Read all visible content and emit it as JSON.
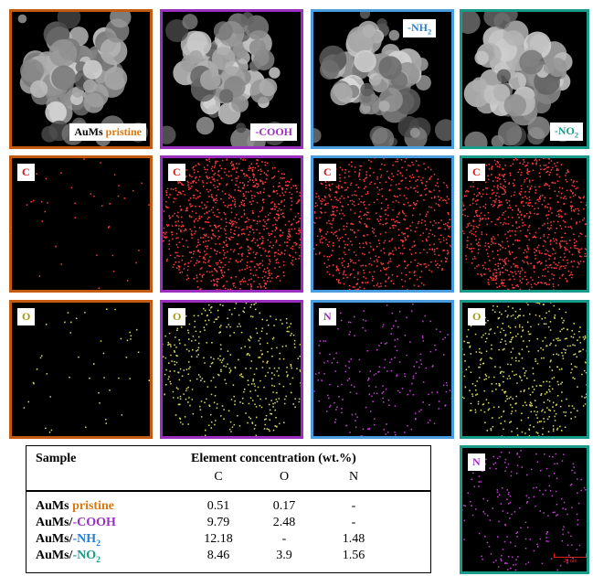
{
  "sem_panels": [
    {
      "prefix": "AuMs",
      "text": "pristine"
    },
    {
      "text": "-COOH"
    },
    {
      "text": "-NH",
      "sub": "2"
    },
    {
      "text": "-NO",
      "sub": "2"
    }
  ],
  "map_rows": [
    [
      "C",
      "C",
      "C",
      "C"
    ],
    [
      "O",
      "O",
      "N",
      "O"
    ]
  ],
  "extra_map": "N",
  "scale_bar": "20 nm",
  "table": {
    "sample_header": "Sample",
    "group_header": "Element concentration (wt.%)",
    "columns": [
      "C",
      "O",
      "N"
    ],
    "rows": [
      {
        "sample": {
          "prefix": "AuMs",
          "text": "pristine"
        },
        "values": [
          "0.51",
          "0.17",
          "-"
        ]
      },
      {
        "sample": {
          "prefix": "AuMs/",
          "text": "-COOH"
        },
        "values": [
          "9.79",
          "2.48",
          "-"
        ]
      },
      {
        "sample": {
          "prefix": "AuMs/",
          "text": "-NH",
          "sub": "2"
        },
        "values": [
          "12.18",
          "-",
          "1.48"
        ]
      },
      {
        "sample": {
          "prefix": "AuMs/",
          "text": "-NO",
          "sub": "2"
        },
        "values": [
          "8.46",
          "3.9",
          "1.56"
        ]
      }
    ]
  }
}
